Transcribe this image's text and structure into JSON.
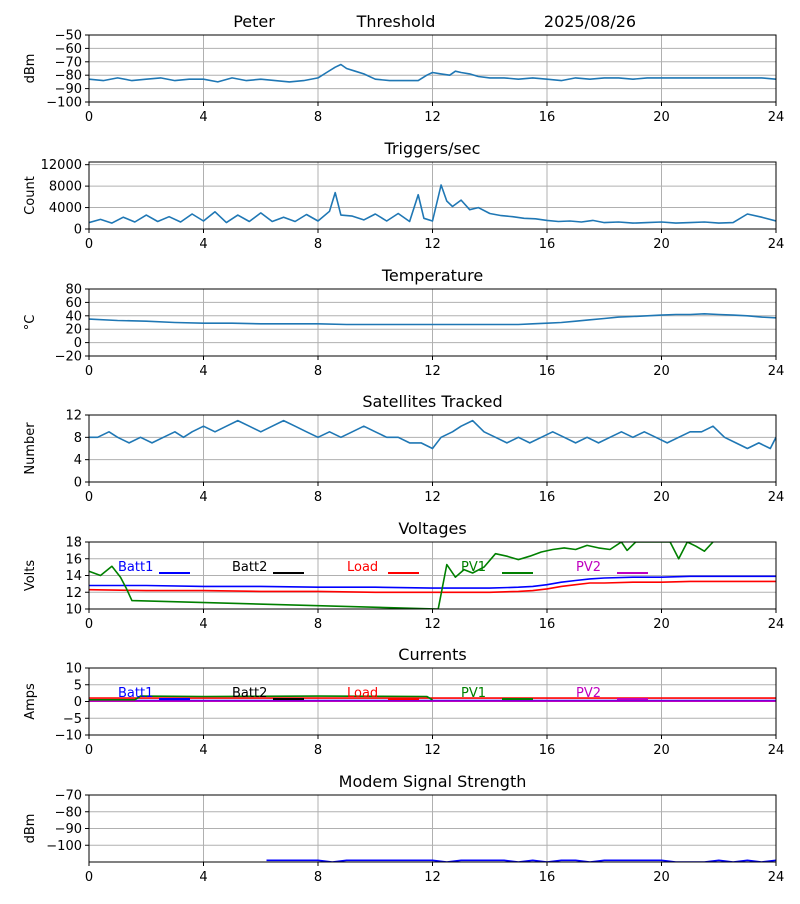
{
  "header": {
    "name": "Peter",
    "mode": "Threshold",
    "date": "2025/08/26"
  },
  "chart_data": [
    {
      "id": "threshold",
      "type": "line",
      "title": "",
      "ylabel": "dBm",
      "xlim": [
        0,
        24
      ],
      "ylim": [
        -100,
        -50
      ],
      "grid": true,
      "xticks": [
        0,
        4,
        8,
        12,
        16,
        20,
        24
      ],
      "yticks": [
        -100,
        -90,
        -80,
        -70,
        -60,
        -50
      ],
      "ytick_labels": [
        "−100",
        "−90",
        "−80",
        "−70",
        "−60",
        "−50"
      ],
      "series": [
        {
          "color": "#1f77b4",
          "x": [
            0,
            0.5,
            1,
            1.5,
            2,
            2.5,
            3,
            3.5,
            4,
            4.5,
            5,
            5.5,
            6,
            6.5,
            7,
            7.5,
            8,
            8.3,
            8.6,
            8.8,
            9,
            9.3,
            9.6,
            10,
            10.5,
            11,
            11.5,
            11.8,
            12,
            12.3,
            12.6,
            12.8,
            13,
            13.3,
            13.6,
            14,
            14.5,
            15,
            15.5,
            16,
            16.5,
            17,
            17.5,
            18,
            18.5,
            19,
            19.5,
            20,
            20.5,
            21,
            21.5,
            22,
            22.5,
            23,
            23.5,
            24
          ],
          "y": [
            -83,
            -84,
            -82,
            -84,
            -83,
            -82,
            -84,
            -83,
            -83,
            -85,
            -82,
            -84,
            -83,
            -84,
            -85,
            -84,
            -82,
            -78,
            -74,
            -72,
            -75,
            -77,
            -79,
            -83,
            -84,
            -84,
            -84,
            -80,
            -78,
            -79,
            -80,
            -77,
            -78,
            -79,
            -81,
            -82,
            -82,
            -83,
            -82,
            -83,
            -84,
            -82,
            -83,
            -82,
            -82,
            -83,
            -82,
            -82,
            -82,
            -82,
            -82,
            -82,
            -82,
            -82,
            -82,
            -83
          ]
        }
      ]
    },
    {
      "id": "triggers",
      "type": "line",
      "title": "Triggers/sec",
      "ylabel": "Count",
      "xlim": [
        0,
        24
      ],
      "ylim": [
        0,
        12500
      ],
      "grid": true,
      "xticks": [
        0,
        4,
        8,
        12,
        16,
        20,
        24
      ],
      "yticks": [
        0,
        4000,
        8000,
        12000
      ],
      "ytick_labels": [
        "0",
        "4000",
        "8000",
        "12000"
      ],
      "series": [
        {
          "color": "#1f77b4",
          "x": [
            0,
            0.4,
            0.8,
            1.2,
            1.6,
            2,
            2.4,
            2.8,
            3.2,
            3.6,
            4,
            4.4,
            4.8,
            5.2,
            5.6,
            6,
            6.4,
            6.8,
            7.2,
            7.6,
            8,
            8.4,
            8.6,
            8.8,
            9.2,
            9.6,
            10,
            10.4,
            10.8,
            11.2,
            11.5,
            11.7,
            12,
            12.3,
            12.5,
            12.7,
            13,
            13.3,
            13.6,
            14,
            14.4,
            14.8,
            15.2,
            15.6,
            16,
            16.4,
            16.8,
            17.2,
            17.6,
            18,
            18.5,
            19,
            19.5,
            20,
            20.5,
            21,
            21.5,
            22,
            22.5,
            23,
            23.5,
            24
          ],
          "y": [
            1200,
            1800,
            1100,
            2200,
            1300,
            2600,
            1400,
            2300,
            1300,
            2800,
            1500,
            3200,
            1200,
            2600,
            1400,
            3000,
            1400,
            2200,
            1400,
            2700,
            1500,
            3300,
            6800,
            2600,
            2400,
            1700,
            2800,
            1500,
            2900,
            1400,
            6400,
            2000,
            1500,
            8200,
            5200,
            4200,
            5400,
            3600,
            4000,
            2900,
            2500,
            2300,
            2000,
            1900,
            1600,
            1400,
            1500,
            1300,
            1600,
            1200,
            1300,
            1100,
            1200,
            1300,
            1100,
            1200,
            1300,
            1100,
            1200,
            2800,
            2200,
            1500
          ]
        }
      ]
    },
    {
      "id": "temperature",
      "type": "line",
      "title": "Temperature",
      "ylabel": "°C",
      "xlim": [
        0,
        24
      ],
      "ylim": [
        -20,
        80
      ],
      "grid": true,
      "xticks": [
        0,
        4,
        8,
        12,
        16,
        20,
        24
      ],
      "yticks": [
        -20,
        0,
        20,
        40,
        60,
        80
      ],
      "ytick_labels": [
        "−20",
        "0",
        "20",
        "40",
        "60",
        "80"
      ],
      "series": [
        {
          "color": "#1f77b4",
          "x": [
            0,
            1,
            2,
            3,
            4,
            5,
            6,
            7,
            8,
            9,
            10,
            11,
            12,
            13,
            14,
            15,
            15.5,
            16,
            16.5,
            17,
            17.5,
            18,
            18.5,
            19,
            19.5,
            20,
            20.5,
            21,
            21.5,
            22,
            22.5,
            23,
            23.5,
            24
          ],
          "y": [
            35,
            33,
            32,
            30,
            29,
            29,
            28,
            28,
            28,
            27,
            27,
            27,
            27,
            27,
            27,
            27,
            28,
            29,
            30,
            32,
            34,
            36,
            38,
            39,
            40,
            41,
            42,
            42,
            43,
            42,
            41,
            40,
            38,
            37
          ]
        }
      ]
    },
    {
      "id": "satellites",
      "type": "line",
      "title": "Satellites Tracked",
      "ylabel": "Number",
      "xlim": [
        0,
        24
      ],
      "ylim": [
        0,
        12
      ],
      "grid": true,
      "xticks": [
        0,
        4,
        8,
        12,
        16,
        20,
        24
      ],
      "yticks": [
        0,
        4,
        8,
        12
      ],
      "ytick_labels": [
        "0",
        "4",
        "8",
        "12"
      ],
      "series": [
        {
          "color": "#1f77b4",
          "x": [
            0,
            0.3,
            0.7,
            1,
            1.4,
            1.8,
            2.2,
            2.6,
            3,
            3.3,
            3.6,
            4,
            4.4,
            4.8,
            5.2,
            5.6,
            6,
            6.4,
            6.8,
            7.2,
            7.6,
            8,
            8.4,
            8.8,
            9.2,
            9.6,
            10,
            10.4,
            10.8,
            11.2,
            11.6,
            12,
            12.3,
            12.7,
            13,
            13.4,
            13.8,
            14.2,
            14.6,
            15,
            15.4,
            15.8,
            16.2,
            16.6,
            17,
            17.4,
            17.8,
            18.2,
            18.6,
            19,
            19.4,
            19.8,
            20.2,
            20.6,
            21,
            21.4,
            21.8,
            22.2,
            22.6,
            23,
            23.4,
            23.8,
            24
          ],
          "y": [
            8,
            8,
            9,
            8,
            7,
            8,
            7,
            8,
            9,
            8,
            9,
            10,
            9,
            10,
            11,
            10,
            9,
            10,
            11,
            10,
            9,
            8,
            9,
            8,
            9,
            10,
            9,
            8,
            8,
            7,
            7,
            6,
            8,
            9,
            10,
            11,
            9,
            8,
            7,
            8,
            7,
            8,
            9,
            8,
            7,
            8,
            7,
            8,
            9,
            8,
            9,
            8,
            7,
            8,
            9,
            9,
            10,
            8,
            7,
            6,
            7,
            6,
            8
          ]
        }
      ]
    },
    {
      "id": "voltages",
      "type": "line",
      "title": "Voltages",
      "ylabel": "Volts",
      "xlim": [
        0,
        24
      ],
      "ylim": [
        10,
        18
      ],
      "grid": true,
      "xticks": [
        0,
        4,
        8,
        12,
        16,
        20,
        24
      ],
      "yticks": [
        10,
        12,
        14,
        16,
        18
      ],
      "ytick_labels": [
        "10",
        "12",
        "14",
        "16",
        "18"
      ],
      "legend": [
        {
          "label": "Batt1",
          "color": "#0000ff"
        },
        {
          "label": "Batt2",
          "color": "#000000"
        },
        {
          "label": "Load",
          "color": "#ff0000"
        },
        {
          "label": "PV1",
          "color": "#008000"
        },
        {
          "label": "PV2",
          "color": "#bf00bf"
        }
      ],
      "series": [
        {
          "name": "Batt1",
          "color": "#0000ff",
          "x": [
            0,
            2,
            4,
            6,
            8,
            10,
            12,
            14,
            15,
            15.5,
            16,
            16.5,
            17,
            17.5,
            18,
            19,
            20,
            21,
            22,
            23,
            24
          ],
          "y": [
            12.8,
            12.8,
            12.7,
            12.7,
            12.6,
            12.6,
            12.5,
            12.5,
            12.6,
            12.7,
            12.9,
            13.2,
            13.4,
            13.6,
            13.7,
            13.8,
            13.8,
            13.9,
            13.9,
            13.9,
            13.9
          ]
        },
        {
          "name": "Load",
          "color": "#ff0000",
          "x": [
            0,
            2,
            4,
            6,
            8,
            10,
            12,
            14,
            15,
            15.5,
            16,
            16.5,
            17,
            17.5,
            18,
            19,
            20,
            21,
            22,
            23,
            24
          ],
          "y": [
            12.3,
            12.2,
            12.2,
            12.1,
            12.1,
            12.0,
            12.0,
            12.0,
            12.1,
            12.2,
            12.4,
            12.7,
            12.9,
            13.1,
            13.1,
            13.2,
            13.2,
            13.3,
            13.3,
            13.3,
            13.3
          ]
        },
        {
          "name": "PV1",
          "color": "#008000",
          "x": [
            0,
            0.4,
            0.8,
            1.1,
            1.3,
            1.5,
            12.2,
            12.5,
            12.8,
            13.1,
            13.4,
            13.8,
            14.2,
            14.6,
            15,
            15.4,
            15.8,
            16.2,
            16.6,
            17,
            17.4,
            17.8,
            18.2,
            18.6,
            18.8,
            19.1,
            19.6,
            20,
            20.3,
            20.6,
            20.9,
            21.2,
            21.5,
            21.8
          ],
          "y": [
            14.5,
            14.0,
            15.1,
            13.8,
            12.5,
            11.0,
            10.0,
            15.3,
            13.8,
            14.7,
            14.3,
            15.0,
            16.6,
            16.3,
            15.9,
            16.3,
            16.8,
            17.1,
            17.3,
            17.1,
            17.6,
            17.3,
            17.1,
            18.0,
            17.0,
            18.0,
            18.0,
            18.0,
            18.0,
            16.0,
            18.0,
            17.5,
            16.9,
            18.0
          ]
        }
      ]
    },
    {
      "id": "currents",
      "type": "line",
      "title": "Currents",
      "ylabel": "Amps",
      "xlim": [
        0,
        24
      ],
      "ylim": [
        -10,
        10
      ],
      "grid": true,
      "xticks": [
        0,
        4,
        8,
        12,
        16,
        20,
        24
      ],
      "yticks": [
        -10,
        -5,
        0,
        5,
        10
      ],
      "ytick_labels": [
        "−10",
        "−5",
        "0",
        "5",
        "10"
      ],
      "legend": [
        {
          "label": "Batt1",
          "color": "#0000ff"
        },
        {
          "label": "Batt2",
          "color": "#000000"
        },
        {
          "label": "Load",
          "color": "#ff0000"
        },
        {
          "label": "PV1",
          "color": "#008000"
        },
        {
          "label": "PV2",
          "color": "#bf00bf"
        }
      ],
      "series": [
        {
          "name": "Load",
          "color": "#ff0000",
          "x": [
            0,
            6,
            12,
            18,
            24
          ],
          "y": [
            1.0,
            1.0,
            1.0,
            1.0,
            1.0
          ]
        },
        {
          "name": "Batt1",
          "color": "#0000ff",
          "x": [
            0,
            6,
            12,
            18,
            24
          ],
          "y": [
            0.3,
            0.3,
            0.3,
            0.3,
            0.3
          ]
        },
        {
          "name": "PV2",
          "color": "#bf00bf",
          "x": [
            0,
            6,
            12,
            18,
            24
          ],
          "y": [
            0.1,
            0.1,
            0.1,
            0.1,
            0.1
          ]
        },
        {
          "name": "PV1",
          "color": "#008000",
          "x": [
            0,
            1.6,
            1.8,
            4,
            8,
            11.8,
            12
          ],
          "y": [
            0.5,
            0.5,
            1.6,
            1.5,
            1.6,
            1.5,
            0.5
          ]
        }
      ]
    },
    {
      "id": "modem",
      "type": "line",
      "title": "Modem Signal Strength",
      "ylabel": "dBm",
      "xlim": [
        0,
        24
      ],
      "ylim": [
        -110,
        -70
      ],
      "grid": true,
      "xticks": [
        0,
        4,
        8,
        12,
        16,
        20,
        24
      ],
      "yticks": [
        -100,
        -90,
        -80,
        -70
      ],
      "ytick_labels": [
        "−100",
        "−90",
        "−80",
        "−70"
      ],
      "series": [
        {
          "color": "#0000ff",
          "x": [
            6.2,
            6.5,
            7,
            7.5,
            8,
            8.5,
            9,
            9.5,
            10,
            10.5,
            11,
            11.5,
            12,
            12.5,
            13,
            13.5,
            14,
            14.5,
            15,
            15.5,
            16,
            16.5,
            17,
            17.5,
            18,
            18.5,
            19,
            19.5,
            20,
            20.5,
            21,
            21.5,
            22,
            22.5,
            23,
            23.5,
            24
          ],
          "y": [
            -109,
            -109,
            -109,
            -109,
            -109,
            -110,
            -109,
            -109,
            -109,
            -109,
            -109,
            -109,
            -109,
            -110,
            -109,
            -109,
            -109,
            -109,
            -110,
            -109,
            -110,
            -109,
            -109,
            -110,
            -109,
            -109,
            -109,
            -109,
            -109,
            -110,
            -110,
            -110,
            -109,
            -110,
            -109,
            -110,
            -109
          ]
        }
      ]
    }
  ]
}
